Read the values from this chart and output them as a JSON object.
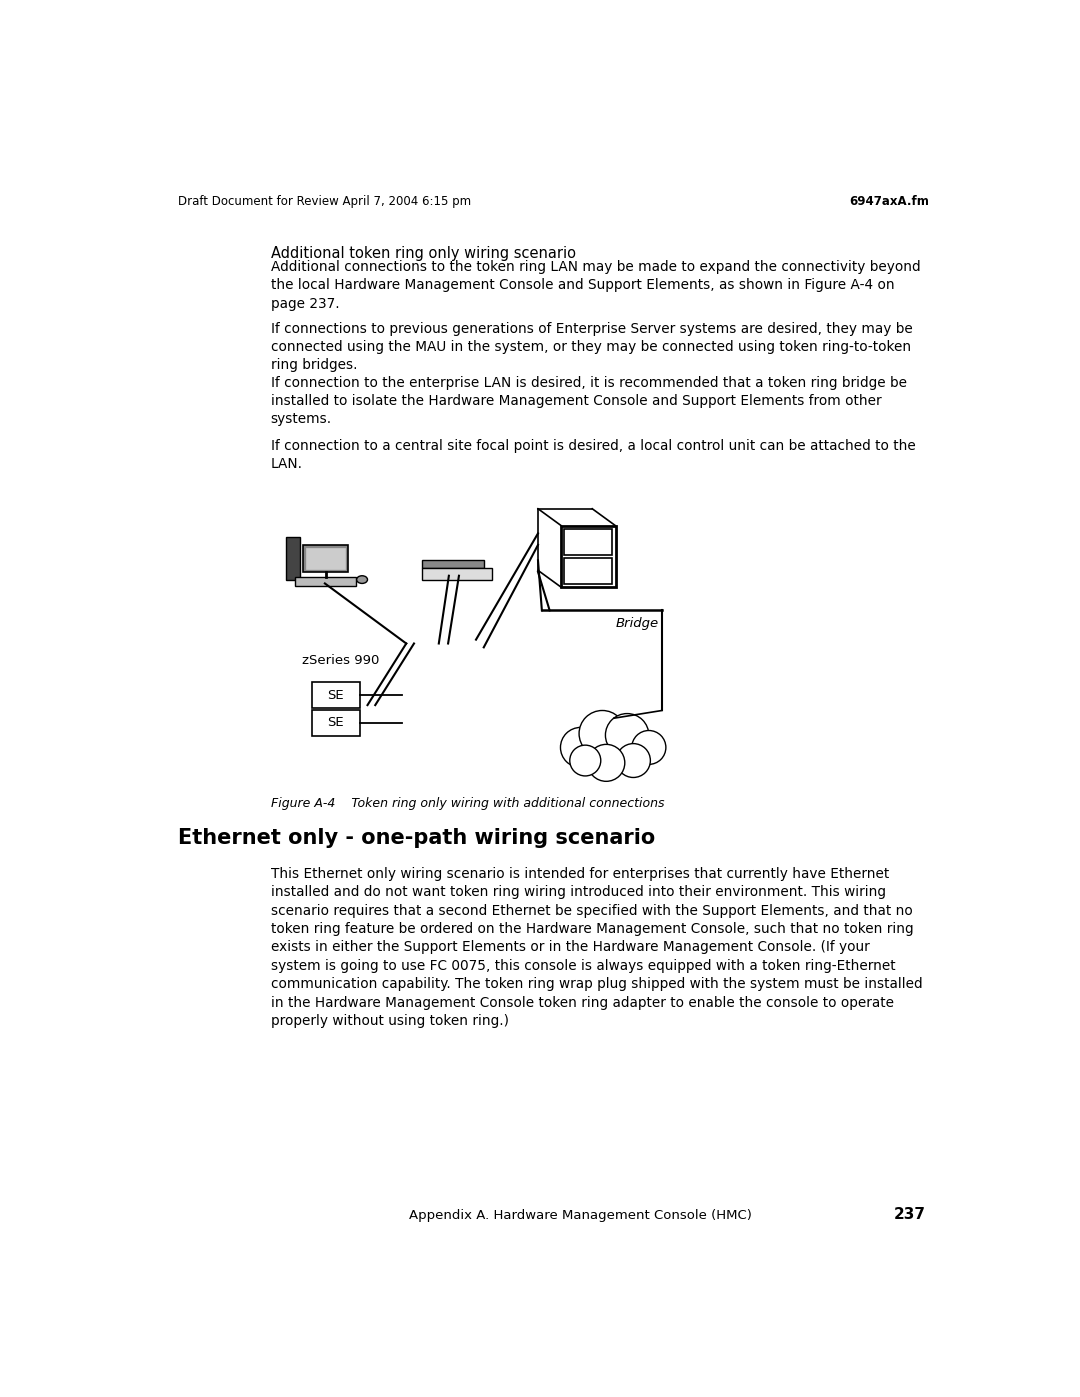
{
  "header_left": "Draft Document for Review April 7, 2004 6:15 pm",
  "header_right": "6947axA.fm",
  "footer_center": "Appendix A. Hardware Management Console (HMC)",
  "footer_page": "237",
  "section_title": "Additional token ring only wiring scenario",
  "section_body1": "Additional connections to the token ring LAN may be made to expand the connectivity beyond\nthe local Hardware Management Console and Support Elements, as shown in Figure A-4 on\npage 237.",
  "section_body2": "If connections to previous generations of Enterprise Server systems are desired, they may be\nconnected using the MAU in the system, or they may be connected using token ring-to-token\nring bridges.",
  "section_body3": "If connection to the enterprise LAN is desired, it is recommended that a token ring bridge be\ninstalled to isolate the Hardware Management Console and Support Elements from other\nsystems.",
  "section_body4": "If connection to a central site focal point is desired, a local control unit can be attached to the\nLAN.",
  "figure_caption": "Figure A-4    Token ring only wiring with additional connections",
  "section2_title": "Ethernet only - one-path wiring scenario",
  "section2_body": "This Ethernet only wiring scenario is intended for enterprises that currently have Ethernet\ninstalled and do not want token ring wiring introduced into their environment. This wiring\nscenario requires that a second Ethernet be specified with the Support Elements, and that no\ntoken ring feature be ordered on the Hardware Management Console, such that no token ring\nexists in either the Support Elements or in the Hardware Management Console. (If your\nsystem is going to use FC 0075, this console is always equipped with a token ring-Ethernet\ncommunication capability. The token ring wrap plug shipped with the system must be installed\nin the Hardware Management Console token ring adapter to enable the console to operate\nproperly without using token ring.)",
  "bg_color": "#ffffff",
  "text_color": "#000000",
  "diagram_label_zseries": "zSeries 990",
  "diagram_label_se1": "SE",
  "diagram_label_se2": "SE",
  "diagram_label_bridge": "Bridge"
}
